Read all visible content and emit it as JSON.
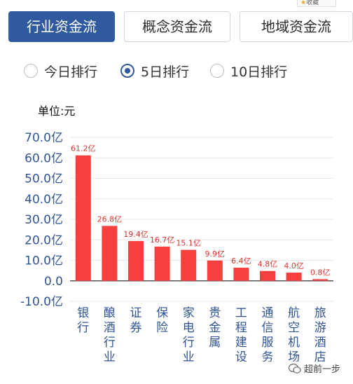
{
  "tabs": [
    {
      "label": "行业资金流",
      "active": true
    },
    {
      "label": "概念资金流",
      "active": false
    },
    {
      "label": "地域资金流",
      "active": false
    }
  ],
  "favorite_label": "收藏",
  "ranking_options": [
    {
      "label": "今日排行",
      "selected": false
    },
    {
      "label": "5日排行",
      "selected": true
    },
    {
      "label": "10日排行",
      "selected": false
    }
  ],
  "unit_label": "单位:元",
  "watermark": "超前一步",
  "colors": {
    "accent": "#2f5aa0",
    "bar": "#f5403f",
    "label": "#e3322e",
    "axis_text": "#2f5496"
  },
  "chart_data": {
    "type": "bar",
    "title": "",
    "xlabel": "",
    "ylabel": "",
    "categories": [
      "银行",
      "酿酒行业",
      "证券",
      "保险",
      "家电行业",
      "贵金属",
      "工程建设",
      "通信服务",
      "航空机场",
      "旅游酒店"
    ],
    "values": [
      61.2,
      26.8,
      19.4,
      16.7,
      15.1,
      9.9,
      6.4,
      4.8,
      4.0,
      0.8
    ],
    "value_labels": [
      "61.2亿",
      "26.8亿",
      "19.4亿",
      "16.7亿",
      "15.1亿",
      "9.9亿",
      "6.4亿",
      "4.8亿",
      "4.0亿",
      "0.8亿"
    ],
    "yticks": [
      "70.0亿",
      "60.0亿",
      "50.0亿",
      "40.0亿",
      "30.0亿",
      "20.0亿",
      "10.0亿",
      "0.0",
      "-10.0亿"
    ],
    "ylim": [
      -10,
      70
    ],
    "grid": true
  }
}
